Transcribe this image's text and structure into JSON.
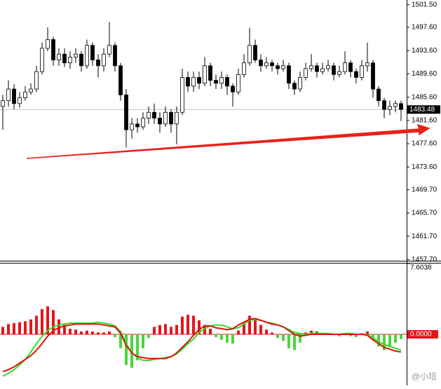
{
  "chart_data": [
    {
      "type": "candlestick",
      "open": [
        1484,
        1485,
        1487,
        1484.5,
        1485.5,
        1486.5,
        1487,
        1490,
        1494,
        1495.5,
        1492,
        1493,
        1491.5,
        1492.5,
        1493,
        1491,
        1494.5,
        1492,
        1491,
        1493,
        1494.5,
        1491,
        1486,
        1480,
        1481,
        1480.5,
        1482,
        1483,
        1482,
        1481,
        1483,
        1481,
        1483,
        1489,
        1487.5,
        1489,
        1488,
        1491,
        1488.5,
        1488,
        1489,
        1487.5,
        1486.5,
        1489.5,
        1491.5,
        1494.5,
        1492,
        1491,
        1491.5,
        1491,
        1490.5,
        1491,
        1488,
        1487,
        1489,
        1490.5,
        1491,
        1490,
        1490.5,
        1491,
        1489.5,
        1490,
        1491.5,
        1490,
        1489,
        1491,
        1491.5,
        1487,
        1485,
        1483.5,
        1484,
        1484.5
      ],
      "high": [
        1486,
        1488.5,
        1487.8,
        1486.5,
        1487.5,
        1488,
        1491,
        1495,
        1497.6,
        1496,
        1494,
        1494,
        1493.5,
        1494,
        1493.5,
        1495.5,
        1495,
        1493,
        1494,
        1498.5,
        1495,
        1491.5,
        1487,
        1482,
        1482,
        1483,
        1484,
        1484.5,
        1483,
        1484,
        1483.5,
        1484,
        1490.5,
        1490,
        1490,
        1490,
        1492.5,
        1491.5,
        1489.5,
        1490,
        1489.5,
        1488,
        1490.5,
        1493,
        1497.5,
        1495.5,
        1493,
        1492.5,
        1492,
        1491.5,
        1492,
        1491.5,
        1488.5,
        1490,
        1491.5,
        1493,
        1491.5,
        1491.5,
        1492,
        1491.5,
        1491,
        1493.5,
        1492,
        1490.5,
        1492,
        1495,
        1492,
        1487.5,
        1485.5,
        1485,
        1485,
        1485
      ],
      "low": [
        1480,
        1484,
        1483.5,
        1483.8,
        1485,
        1486,
        1486.5,
        1489.5,
        1493.5,
        1491,
        1491,
        1490.8,
        1490.5,
        1491.5,
        1490,
        1490.5,
        1491,
        1489,
        1490,
        1492.5,
        1490,
        1485,
        1477,
        1478.5,
        1479.5,
        1480,
        1481,
        1481,
        1479.5,
        1480.5,
        1479.5,
        1477.5,
        1482.5,
        1486.5,
        1486.5,
        1487,
        1487.5,
        1487.5,
        1487,
        1487,
        1486,
        1484,
        1486,
        1489,
        1491,
        1491.5,
        1490,
        1490.5,
        1490,
        1489.5,
        1490,
        1487,
        1486,
        1486.5,
        1488.5,
        1490,
        1489,
        1489.5,
        1490,
        1488.5,
        1489,
        1489.5,
        1489,
        1488,
        1488.5,
        1490,
        1485.5,
        1484,
        1482,
        1482.5,
        1483,
        1481.5
      ],
      "close": [
        1485,
        1487,
        1484.5,
        1485.5,
        1486.5,
        1487,
        1490,
        1494,
        1495.5,
        1492,
        1493,
        1491.5,
        1492.5,
        1493,
        1491,
        1494.5,
        1492,
        1491,
        1493,
        1494.5,
        1491,
        1486,
        1480,
        1481,
        1480.5,
        1482,
        1483,
        1482,
        1481,
        1483,
        1481,
        1483,
        1489,
        1487.5,
        1489,
        1488,
        1491,
        1488.5,
        1488,
        1489,
        1487.5,
        1486.5,
        1489.5,
        1491.5,
        1494.5,
        1492,
        1491,
        1491.5,
        1491,
        1490.5,
        1491,
        1488,
        1487,
        1489,
        1490.5,
        1491,
        1490,
        1490.5,
        1491,
        1489.5,
        1490,
        1491.5,
        1490,
        1489,
        1491,
        1491.5,
        1487,
        1485,
        1483.5,
        1484,
        1484.5,
        1483.5
      ],
      "up_color": "#ffffff",
      "down_color": "#000000",
      "ylim": [
        1457.5,
        1502.3
      ],
      "yticks": [
        {
          "value": 1501.5,
          "label": "1501.50"
        },
        {
          "value": 1497.6,
          "label": "1497.60"
        },
        {
          "value": 1493.6,
          "label": "1493.60"
        },
        {
          "value": 1489.6,
          "label": "1489.60"
        },
        {
          "value": 1485.6,
          "label": "1485.60"
        },
        {
          "value": 1481.6,
          "label": "1481.60"
        },
        {
          "value": 1477.6,
          "label": "1477.60"
        },
        {
          "value": 1473.6,
          "label": "1473.60"
        },
        {
          "value": 1469.7,
          "label": "1469.70"
        },
        {
          "value": 1465.7,
          "label": "1465.70"
        },
        {
          "value": 1461.7,
          "label": "1461.70"
        },
        {
          "value": 1457.7,
          "label": "1457.70"
        }
      ],
      "current_price": 1483.48
    },
    {
      "type": "macd",
      "histogram": {
        "positive_color": "#e8141c",
        "negative_color": "#4cd43c",
        "values": [
          0.8,
          1.1,
          1.2,
          1.3,
          1.4,
          1.6,
          2.0,
          2.7,
          3.0,
          2.6,
          1.6,
          1.0,
          0.6,
          0.5,
          0.3,
          0.4,
          0.3,
          0.2,
          0.2,
          0.3,
          -0.3,
          -1.5,
          -3.3,
          -3.6,
          -2.8,
          -1.5,
          -0.4,
          0.8,
          1.0,
          1.1,
          0.8,
          1.0,
          1.9,
          2.1,
          2.0,
          1.5,
          1.0,
          0.6,
          -0.3,
          -0.6,
          -0.9,
          -1.0,
          0.4,
          1.2,
          2.0,
          1.6,
          1.0,
          0.5,
          0.2,
          -0.4,
          -0.7,
          -1.5,
          -1.7,
          -0.9,
          0.2,
          0.4,
          0.3,
          0.1,
          0.1,
          -0.1,
          -0.2,
          -0.1,
          -0.2,
          -0.3,
          0.1,
          0.3,
          -0.6,
          -1.3,
          -1.7,
          -1.4,
          -0.9,
          -0.5
        ]
      },
      "series": [
        {
          "color": "#33dd22",
          "values": [
            -4.5,
            -4.2,
            -3.8,
            -3.3,
            -2.7,
            -1.9,
            -1.0,
            -0.2,
            0.4,
            0.8,
            1.0,
            1.1,
            1.2,
            1.2,
            1.2,
            1.2,
            1.2,
            1.3,
            1.2,
            1.1,
            0.9,
            0.3,
            -1.0,
            -2.0,
            -2.5,
            -2.8,
            -2.8,
            -2.7,
            -2.6,
            -2.5,
            -2.4,
            -2.1,
            -1.6,
            -1.0,
            -0.5,
            0.2,
            0.6,
            0.9,
            1.0,
            1.0,
            0.8,
            0.6,
            0.7,
            1.1,
            1.5,
            1.6,
            1.5,
            1.3,
            1.2,
            1.0,
            0.8,
            0.5,
            0.2,
            0.1,
            0.0,
            0.1,
            0.1,
            0.1,
            0.1,
            0.0,
            0.0,
            0.1,
            0.1,
            0.0,
            0.0,
            0.0,
            -0.4,
            -0.8,
            -1.1,
            -1.3,
            -1.5,
            -1.7
          ]
        },
        {
          "color": "#dd1111",
          "values": [
            -4.0,
            -3.8,
            -3.5,
            -3.1,
            -2.7,
            -2.3,
            -1.7,
            -1.0,
            -0.2,
            0.4,
            0.7,
            0.9,
            1.0,
            1.1,
            1.1,
            1.1,
            1.1,
            1.1,
            1.0,
            0.9,
            0.8,
            0.1,
            -1.2,
            -2.0,
            -2.4,
            -2.5,
            -2.6,
            -2.6,
            -2.6,
            -2.6,
            -2.4,
            -2.0,
            -1.4,
            -0.8,
            -0.1,
            0.5,
            0.9,
            0.9,
            0.7,
            0.6,
            0.5,
            0.6,
            1.0,
            1.3,
            1.6,
            1.7,
            1.5,
            1.3,
            1.1,
            1.0,
            0.8,
            0.4,
            0.0,
            -0.2,
            -0.1,
            0.0,
            0.0,
            0.0,
            0.0,
            0.0,
            0.0,
            0.0,
            0.0,
            0.0,
            0.0,
            -0.1,
            -0.6,
            -1.0,
            -1.4,
            -1.6,
            -1.8,
            -1.9
          ]
        }
      ],
      "ylim": [
        -5.5,
        7.6038
      ],
      "yticks": [
        7.6038,
        {
          "value": 0,
          "label": "0.0000"
        }
      ]
    }
  ],
  "watermark": "@小培"
}
